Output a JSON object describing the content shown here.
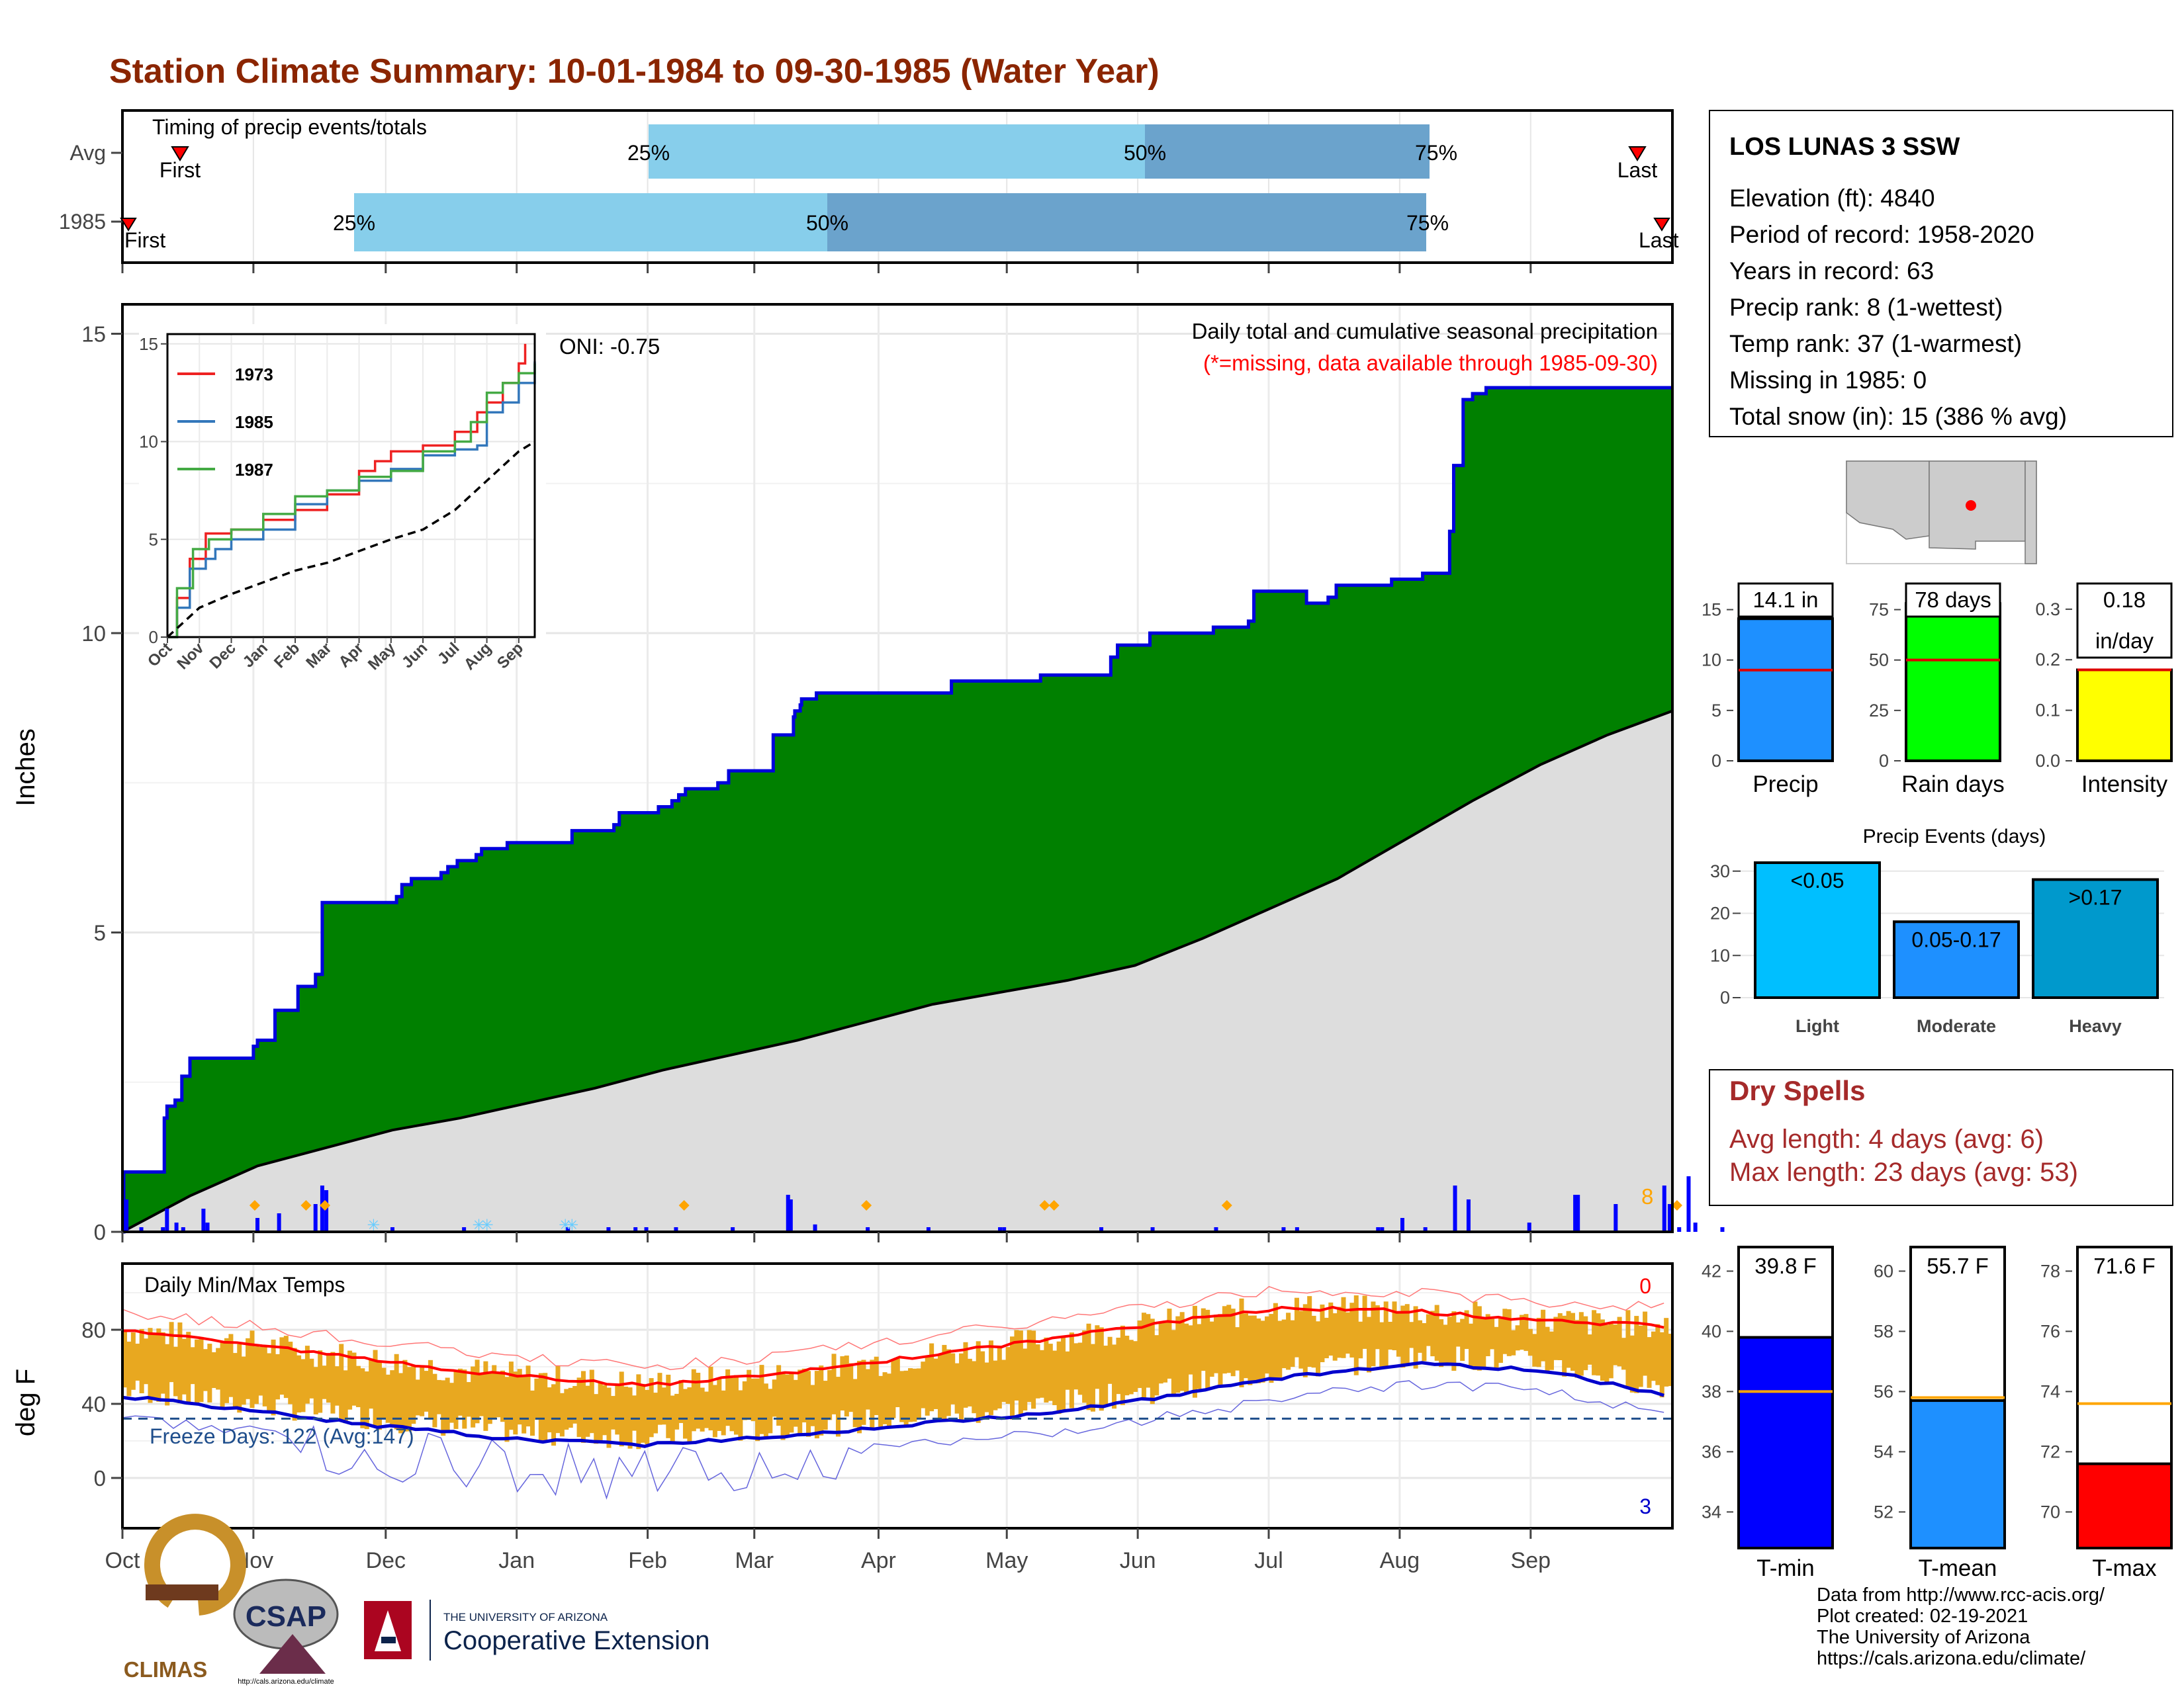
{
  "title": "Station Climate Summary: 10-01-1984 to 09-30-1985 (Water Year)",
  "colors": {
    "title": "#8B2500",
    "precip_fill": "#008000",
    "precip_line": "#0000DD",
    "avg_fill": "#DDDDDD",
    "daily_bar": "#0000FF",
    "temp_band": "#E8A820",
    "tmax_line": "#FF0000",
    "tmin_line": "#0000CC",
    "light_blue": "#87CEEB",
    "mid_blue": "#6BA3CC",
    "dry_spell_text": "#A52A2A",
    "light_event": "#00BFFF",
    "moderate_event": "#1E90FF",
    "heavy_event": "#0099CC"
  },
  "timing": {
    "title": "Timing of precip events/totals",
    "rows": [
      {
        "label": "Avg",
        "first_label": "First",
        "last_label": "Last",
        "p25": "25%",
        "p50": "50%",
        "p75": "75%"
      },
      {
        "label": "1985",
        "first_label": "First",
        "last_label": "Last",
        "p25": "25%",
        "p50": "50%",
        "p75": "75%"
      }
    ]
  },
  "main": {
    "ylabel": "Inches",
    "yticks": [
      "0",
      "5",
      "10",
      "15"
    ],
    "note1": "Daily total and cumulative seasonal precipitation",
    "note2": "(*=missing, data available through 1985-09-30)",
    "oni": "ONI: -0.75",
    "count_label": "8"
  },
  "inset": {
    "legend": [
      "1973",
      "1985",
      "1987"
    ],
    "yticks": [
      "0",
      "5",
      "10",
      "15"
    ],
    "xticks": [
      "Oct",
      "Nov",
      "Dec",
      "Jan",
      "Feb",
      "Mar",
      "Apr",
      "May",
      "Jun",
      "Jul",
      "Aug",
      "Sep"
    ]
  },
  "temps": {
    "title": "Daily Min/Max Temps",
    "ylabel": "deg F",
    "yticks": [
      "0",
      "40",
      "80"
    ],
    "freeze": "Freeze Days: 122 (Avg:147)",
    "hot_count": "0",
    "cold_count": "3",
    "months": [
      "Oct",
      "Nov",
      "Dec",
      "Jan",
      "Feb",
      "Mar",
      "Apr",
      "May",
      "Jun",
      "Jul",
      "Aug",
      "Sep"
    ]
  },
  "station": {
    "name": "LOS LUNAS 3 SSW",
    "lines": [
      "Elevation (ft): 4840",
      "Period of record: 1958-2020",
      "Years in record: 63",
      "Precip rank: 8 (1-wettest)",
      "Temp rank: 37 (1-warmest)",
      "Missing in 1985: 0",
      "Total snow (in): 15 (386 % avg)"
    ]
  },
  "mini_bars": [
    {
      "label": "Precip",
      "value_text": "14.1 in",
      "yticks": [
        "0",
        "5",
        "10",
        "15"
      ]
    },
    {
      "label": "Rain days",
      "value_text": "78 days",
      "yticks": [
        "0",
        "25",
        "50",
        "75"
      ]
    },
    {
      "label": "Intensity",
      "value_text": "0.18",
      "value_text2": "in/day",
      "yticks": [
        "0.0",
        "0.1",
        "0.2",
        "0.3"
      ]
    }
  ],
  "events": {
    "title": "Precip Events (days)",
    "yticks": [
      "0",
      "10",
      "20",
      "30"
    ],
    "categories": [
      "Light",
      "Moderate",
      "Heavy"
    ],
    "bar_labels": [
      "<0.05",
      "0.05-0.17",
      ">0.17"
    ]
  },
  "dry_spells": {
    "title": "Dry Spells",
    "avg": "Avg length: 4 days (avg: 6)",
    "max": "Max length: 23 days (avg: 53)"
  },
  "temp_bars": [
    {
      "label": "T-min",
      "value_text": "39.8 F",
      "yticks": [
        "34",
        "36",
        "38",
        "40",
        "42"
      ]
    },
    {
      "label": "T-mean",
      "value_text": "55.7 F",
      "yticks": [
        "52",
        "54",
        "56",
        "58",
        "60"
      ]
    },
    {
      "label": "T-max",
      "value_text": "71.6 F",
      "yticks": [
        "70",
        "72",
        "74",
        "76",
        "78"
      ]
    }
  ],
  "logos": {
    "climas": "CLIMAS",
    "csap": "CSAP",
    "csap_url": "http://cals.arizona.edu/climate",
    "ua_top": "THE UNIVERSITY OF ARIZONA",
    "ua_bottom": "Cooperative Extension"
  },
  "credits": [
    "Data from http://www.rcc-acis.org/",
    "Plot created: 02-19-2021",
    "The University of Arizona",
    "https://cals.arizona.edu/climate/"
  ],
  "chart_data": [
    {
      "type": "area",
      "title": "Daily total and cumulative seasonal precipitation",
      "ylabel": "Inches",
      "ylim": [
        0,
        15.5
      ],
      "x_unit": "day of water year (0 = Oct 1)",
      "cumulative_1985": [
        [
          0,
          0
        ],
        [
          1,
          1.0
        ],
        [
          30,
          1.0
        ],
        [
          31,
          1.9
        ],
        [
          33,
          2.1
        ],
        [
          39,
          2.2
        ],
        [
          44,
          2.6
        ],
        [
          50,
          2.9
        ],
        [
          97,
          3.1
        ],
        [
          100,
          3.2
        ],
        [
          113,
          3.7
        ],
        [
          130,
          4.1
        ],
        [
          143,
          4.3
        ],
        [
          148,
          5.5
        ],
        [
          203,
          5.6
        ],
        [
          207,
          5.8
        ],
        [
          214,
          5.9
        ],
        [
          236,
          6.0
        ],
        [
          241,
          6.1
        ],
        [
          248,
          6.2
        ],
        [
          262,
          6.3
        ],
        [
          266,
          6.4
        ],
        [
          285,
          6.5
        ],
        [
          333,
          6.7
        ],
        [
          364,
          6.8
        ],
        [
          368,
          7.0
        ],
        [
          397,
          7.1
        ],
        [
          407,
          7.2
        ],
        [
          412,
          7.3
        ],
        [
          417,
          7.4
        ],
        [
          441,
          7.5
        ],
        [
          449,
          7.7
        ],
        [
          482,
          8.3
        ],
        [
          497,
          8.6
        ],
        [
          498,
          8.7
        ],
        [
          502,
          8.8
        ],
        [
          503,
          8.9
        ],
        [
          514,
          9.0
        ],
        [
          543,
          9.0
        ],
        [
          579,
          9.0
        ],
        [
          596,
          9.0
        ],
        [
          607,
          9.0
        ],
        [
          614,
          9.2
        ],
        [
          660,
          9.2
        ],
        [
          680,
          9.3
        ],
        [
          704,
          9.3
        ],
        [
          732,
          9.6
        ],
        [
          737,
          9.8
        ],
        [
          761,
          10.0
        ],
        [
          769,
          10.0
        ],
        [
          808,
          10.1
        ],
        [
          834,
          10.2
        ],
        [
          838,
          10.7
        ],
        [
          850,
          10.7
        ],
        [
          877,
          10.5
        ],
        [
          893,
          10.6
        ],
        [
          899,
          10.8
        ],
        [
          940,
          10.9
        ],
        [
          963,
          11.0
        ],
        [
          966,
          11.0
        ],
        [
          983,
          11.7
        ],
        [
          986,
          12.8
        ],
        [
          993,
          13.9
        ],
        [
          1000,
          14.0
        ],
        [
          1010,
          14.1
        ]
      ],
      "average_cumulative": [
        [
          0,
          0
        ],
        [
          50,
          0.6
        ],
        [
          100,
          1.1
        ],
        [
          150,
          1.4
        ],
        [
          200,
          1.7
        ],
        [
          250,
          1.9
        ],
        [
          300,
          2.15
        ],
        [
          350,
          2.4
        ],
        [
          400,
          2.7
        ],
        [
          450,
          2.95
        ],
        [
          500,
          3.2
        ],
        [
          550,
          3.5
        ],
        [
          600,
          3.8
        ],
        [
          650,
          4.0
        ],
        [
          700,
          4.2
        ],
        [
          750,
          4.45
        ],
        [
          800,
          4.9
        ],
        [
          850,
          5.4
        ],
        [
          900,
          5.9
        ],
        [
          950,
          6.55
        ],
        [
          1000,
          7.2
        ],
        [
          1050,
          7.8
        ],
        [
          1100,
          8.3
        ],
        [
          1148,
          8.7
        ]
      ],
      "daily_bars_in": [
        [
          3,
          0.35
        ],
        [
          14,
          0.05
        ],
        [
          30,
          0.05
        ],
        [
          33,
          0.25
        ],
        [
          40,
          0.1
        ],
        [
          45,
          0.05
        ],
        [
          60,
          0.25
        ],
        [
          63,
          0.1
        ],
        [
          100,
          0.15
        ],
        [
          116,
          0.2
        ],
        [
          143,
          0.3
        ],
        [
          148,
          0.5
        ],
        [
          151,
          0.45
        ],
        [
          200,
          0.05
        ],
        [
          253,
          0.05
        ],
        [
          330,
          0.05
        ],
        [
          360,
          0.05
        ],
        [
          380,
          0.05
        ],
        [
          388,
          0.05
        ],
        [
          410,
          0.05
        ],
        [
          452,
          0.05
        ],
        [
          493,
          0.4
        ],
        [
          495,
          0.35
        ],
        [
          513,
          0.08
        ],
        [
          552,
          0.05
        ],
        [
          597,
          0.05
        ],
        [
          650,
          0.05
        ],
        [
          653,
          0.05
        ],
        [
          725,
          0.05
        ],
        [
          763,
          0.05
        ],
        [
          810,
          0.05
        ],
        [
          860,
          0.05
        ],
        [
          870,
          0.05
        ],
        [
          930,
          0.05
        ],
        [
          933,
          0.05
        ],
        [
          948,
          0.15
        ],
        [
          965,
          0.05
        ],
        [
          987,
          0.5
        ],
        [
          997,
          0.35
        ],
        [
          1042,
          0.1
        ],
        [
          1076,
          0.4
        ],
        [
          1078,
          0.4
        ],
        [
          1106,
          0.3
        ],
        [
          1142,
          0.5
        ],
        [
          1146,
          0.3
        ],
        [
          1153,
          0.05
        ],
        [
          1160,
          0.6
        ],
        [
          1165,
          0.1
        ],
        [
          1185,
          0.05
        ]
      ]
    },
    {
      "type": "line",
      "title": "Inset cumulative precipitation",
      "ylim": [
        0,
        15
      ],
      "x_unit": "month index (0 = Oct, 11 = Sep)",
      "series": [
        {
          "name": "1973",
          "points": [
            [
              0,
              0
            ],
            [
              0.3,
              2
            ],
            [
              0.7,
              4
            ],
            [
              1.2,
              5.3
            ],
            [
              2,
              5.5
            ],
            [
              3,
              6
            ],
            [
              4,
              6.5
            ],
            [
              5,
              7.3
            ],
            [
              6,
              8.5
            ],
            [
              6.5,
              9
            ],
            [
              7,
              9.5
            ],
            [
              8,
              9.8
            ],
            [
              9,
              10.5
            ],
            [
              9.7,
              11.5
            ],
            [
              10,
              12
            ],
            [
              10.5,
              13
            ],
            [
              11,
              14
            ],
            [
              11.2,
              15
            ]
          ]
        },
        {
          "name": "1985",
          "points": [
            [
              0,
              0
            ],
            [
              0.3,
              1.5
            ],
            [
              0.7,
              3.5
            ],
            [
              1.2,
              4
            ],
            [
              1.5,
              4.5
            ],
            [
              2,
              5
            ],
            [
              3,
              5.5
            ],
            [
              4,
              6.8
            ],
            [
              5,
              7.5
            ],
            [
              6,
              8
            ],
            [
              7,
              8.6
            ],
            [
              8,
              9.3
            ],
            [
              9,
              9.6
            ],
            [
              9.7,
              9.8
            ],
            [
              10,
              11.5
            ],
            [
              10.5,
              12
            ],
            [
              11,
              13
            ],
            [
              11.5,
              14.1
            ]
          ]
        },
        {
          "name": "1987",
          "points": [
            [
              0,
              0
            ],
            [
              0.3,
              2.5
            ],
            [
              0.8,
              4.5
            ],
            [
              1.3,
              5
            ],
            [
              2,
              5.5
            ],
            [
              3,
              6.3
            ],
            [
              4,
              7.2
            ],
            [
              5,
              7.5
            ],
            [
              6,
              8.2
            ],
            [
              7,
              8.5
            ],
            [
              8,
              9.5
            ],
            [
              9,
              10
            ],
            [
              9.5,
              11
            ],
            [
              10,
              12.5
            ],
            [
              10.5,
              13
            ],
            [
              11,
              13.5
            ],
            [
              11.5,
              14
            ]
          ]
        },
        {
          "name": "",
          "points": [
            [
              0,
              0
            ],
            [
              1,
              1.5
            ],
            [
              2,
              2.2
            ],
            [
              3,
              2.8
            ],
            [
              4,
              3.4
            ],
            [
              5,
              3.8
            ],
            [
              6,
              4.4
            ],
            [
              7,
              5
            ],
            [
              8,
              5.5
            ],
            [
              9,
              6.5
            ],
            [
              10,
              8
            ],
            [
              11,
              9.5
            ],
            [
              11.5,
              10
            ]
          ]
        }
      ]
    },
    {
      "type": "line",
      "title": "Daily Min/Max Temps",
      "ylabel": "deg F",
      "ylim": [
        -25,
        115
      ],
      "x_unit": "day of water year (0 = Oct 1)",
      "series": [
        {
          "name": "",
          "points": [
            [
              0,
              80
            ],
            [
              31,
              72
            ],
            [
              61,
              63
            ],
            [
              92,
              55
            ],
            [
              123,
              50
            ],
            [
              151,
              55
            ],
            [
              182,
              64
            ],
            [
              212,
              73
            ],
            [
              243,
              83
            ],
            [
              273,
              92
            ],
            [
              304,
              90
            ],
            [
              334,
              85
            ],
            [
              364,
              82
            ]
          ]
        },
        {
          "name": "",
          "points": [
            [
              0,
              44
            ],
            [
              31,
              36
            ],
            [
              61,
              28
            ],
            [
              92,
              21
            ],
            [
              123,
              18
            ],
            [
              151,
              22
            ],
            [
              182,
              28
            ],
            [
              212,
              34
            ],
            [
              243,
              43
            ],
            [
              273,
              54
            ],
            [
              304,
              62
            ],
            [
              334,
              58
            ],
            [
              364,
              45
            ]
          ]
        }
      ]
    },
    {
      "type": "bar",
      "title": "Precip Events (days)",
      "categories": [
        "Light",
        "Moderate",
        "Heavy"
      ],
      "values": [
        32,
        18,
        28
      ],
      "ylim": [
        0,
        32
      ]
    },
    {
      "type": "bar",
      "categories": [
        "Precip",
        "Rain days",
        "Intensity"
      ],
      "values": [
        14.1,
        78,
        0.18
      ],
      "averages": [
        9,
        50,
        0.18
      ]
    },
    {
      "type": "bar",
      "categories": [
        "T-min",
        "T-mean",
        "T-max"
      ],
      "values": [
        39.8,
        55.7,
        71.6
      ],
      "averages": [
        38,
        55.8,
        73.6
      ]
    }
  ]
}
